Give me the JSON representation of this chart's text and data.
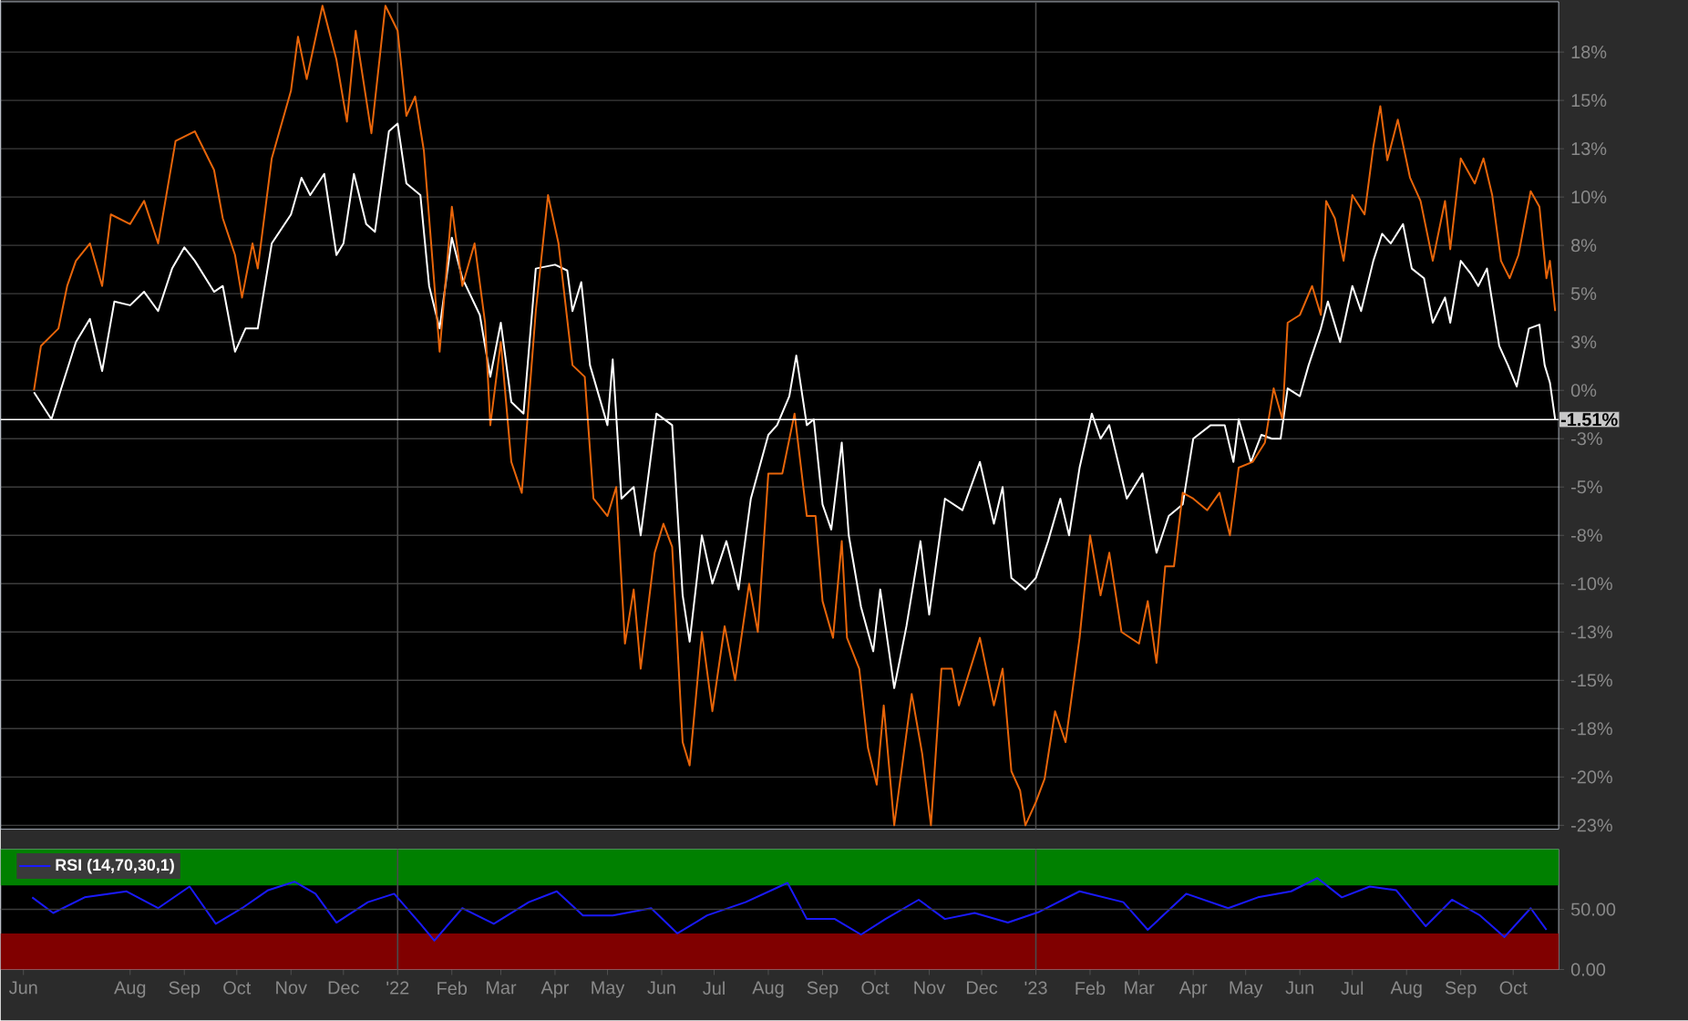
{
  "chart_data": [
    {
      "type": "line",
      "xlim": [
        "2021-05-19",
        "2023-10-27"
      ],
      "ylim": [
        -22.7,
        20.1
      ],
      "tick_labels": "y",
      "grid": "y",
      "yticks": [
        {
          "value": 17.5,
          "label": "18%"
        },
        {
          "value": 15,
          "label": "15%"
        },
        {
          "value": 12.5,
          "label": "13%"
        },
        {
          "value": 10,
          "label": "10%"
        },
        {
          "value": 7.5,
          "label": "8%"
        },
        {
          "value": 5,
          "label": "5%"
        },
        {
          "value": 2.5,
          "label": "3%"
        },
        {
          "value": 0,
          "label": "0%"
        },
        {
          "value": -2.5,
          "label": "-3%"
        },
        {
          "value": -5,
          "label": "-5%"
        },
        {
          "value": -7.5,
          "label": "-8%"
        },
        {
          "value": -10,
          "label": "-10%"
        },
        {
          "value": -12.5,
          "label": "-13%"
        },
        {
          "value": -15,
          "label": "-15%"
        },
        {
          "value": -17.5,
          "label": "-18%"
        },
        {
          "value": -20,
          "label": "-20%"
        },
        {
          "value": -22.5,
          "label": "-23%"
        }
      ],
      "series": [
        {
          "color": "#ffffff",
          "x": [
            "2021-06-07",
            "2021-06-17",
            "2021-07-01",
            "2021-07-09",
            "2021-07-16",
            "2021-07-23",
            "2021-08-01",
            "2021-08-09",
            "2021-08-17",
            "2021-08-25",
            "2021-09-01",
            "2021-09-07",
            "2021-09-18",
            "2021-09-23",
            "2021-09-30",
            "2021-10-06",
            "2021-10-13",
            "2021-10-21",
            "2021-11-01",
            "2021-11-07",
            "2021-11-12",
            "2021-11-20",
            "2021-11-27",
            "2021-12-01",
            "2021-12-07",
            "2021-12-14",
            "2021-12-19",
            "2021-12-27",
            "2022-01-01",
            "2022-01-06",
            "2022-01-14",
            "2022-01-19",
            "2022-01-25",
            "2022-02-01",
            "2022-02-07",
            "2022-02-17",
            "2022-02-23",
            "2022-03-01",
            "2022-03-07",
            "2022-03-14",
            "2022-03-21",
            "2022-04-01",
            "2022-04-08",
            "2022-04-11",
            "2022-04-16",
            "2022-04-21",
            "2022-05-01",
            "2022-05-04",
            "2022-05-09",
            "2022-05-16",
            "2022-05-20",
            "2022-05-29",
            "2022-06-07",
            "2022-06-13",
            "2022-06-17",
            "2022-06-24",
            "2022-06-30",
            "2022-07-08",
            "2022-07-15",
            "2022-07-22",
            "2022-08-01",
            "2022-08-06",
            "2022-08-13",
            "2022-08-17",
            "2022-08-23",
            "2022-08-27",
            "2022-09-01",
            "2022-09-06",
            "2022-09-12",
            "2022-09-16",
            "2022-09-23",
            "2022-09-30",
            "2022-10-04",
            "2022-10-12",
            "2022-10-19",
            "2022-10-27",
            "2022-11-01",
            "2022-11-10",
            "2022-11-20",
            "2022-11-30",
            "2022-12-08",
            "2022-12-13",
            "2022-12-18",
            "2022-12-26",
            "2023-01-01",
            "2023-01-08",
            "2023-01-15",
            "2023-01-20",
            "2023-01-26",
            "2023-02-02",
            "2023-02-07",
            "2023-02-12",
            "2023-02-17",
            "2023-02-22",
            "2023-03-03",
            "2023-03-11",
            "2023-03-18",
            "2023-03-26",
            "2023-04-01",
            "2023-04-11",
            "2023-04-19",
            "2023-04-24",
            "2023-04-27",
            "2023-05-04",
            "2023-05-10",
            "2023-05-16",
            "2023-05-21",
            "2023-05-25",
            "2023-06-01",
            "2023-06-06",
            "2023-06-13",
            "2023-06-17",
            "2023-06-24",
            "2023-07-01",
            "2023-07-06",
            "2023-07-13",
            "2023-07-18",
            "2023-07-23",
            "2023-07-30",
            "2023-08-04",
            "2023-08-11",
            "2023-08-16",
            "2023-08-23",
            "2023-08-26",
            "2023-09-01",
            "2023-09-07",
            "2023-09-11",
            "2023-09-16",
            "2023-09-23",
            "2023-09-28",
            "2023-10-03",
            "2023-10-10",
            "2023-10-16",
            "2023-10-19",
            "2023-10-22",
            "2023-10-25"
          ],
          "values": [
            -0.1,
            -1.5,
            2.5,
            3.7,
            1.0,
            4.6,
            4.4,
            5.1,
            4.1,
            6.3,
            7.4,
            6.7,
            5.1,
            5.4,
            2.0,
            3.2,
            3.2,
            7.6,
            9.1,
            11.0,
            10.1,
            11.2,
            7.0,
            7.6,
            11.2,
            8.6,
            8.2,
            13.4,
            13.8,
            10.7,
            10.1,
            5.4,
            3.2,
            7.9,
            5.8,
            3.9,
            0.7,
            3.5,
            -0.6,
            -1.2,
            6.3,
            6.5,
            6.2,
            4.1,
            5.6,
            1.3,
            -1.8,
            1.6,
            -5.6,
            -5.0,
            -7.5,
            -1.2,
            -1.8,
            -10.6,
            -13.0,
            -7.5,
            -10.0,
            -7.8,
            -10.3,
            -5.6,
            -2.3,
            -1.8,
            -0.3,
            1.8,
            -1.8,
            -1.5,
            -5.9,
            -7.2,
            -2.7,
            -7.5,
            -11.2,
            -13.5,
            -10.3,
            -15.4,
            -12.2,
            -7.8,
            -11.6,
            -5.6,
            -6.2,
            -3.7,
            -6.9,
            -5.0,
            -9.7,
            -10.3,
            -9.7,
            -7.8,
            -5.6,
            -7.5,
            -4.0,
            -1.2,
            -2.5,
            -1.8,
            -3.7,
            -5.6,
            -4.3,
            -8.4,
            -6.5,
            -5.9,
            -2.5,
            -1.8,
            -1.8,
            -3.7,
            -1.5,
            -3.7,
            -2.3,
            -2.5,
            -2.5,
            0.1,
            -0.3,
            1.3,
            3.2,
            4.6,
            2.5,
            5.4,
            4.1,
            6.7,
            8.1,
            7.6,
            8.6,
            6.3,
            5.8,
            3.5,
            4.8,
            3.5,
            6.7,
            6.0,
            5.4,
            6.3,
            2.3,
            1.3,
            0.2,
            3.2,
            3.4,
            1.3,
            0.4,
            -1.51
          ]
        },
        {
          "color": "#e8650a",
          "x": [
            "2021-06-07",
            "2021-06-11",
            "2021-06-21",
            "2021-06-26",
            "2021-07-01",
            "2021-07-09",
            "2021-07-16",
            "2021-07-21",
            "2021-08-01",
            "2021-08-09",
            "2021-08-17",
            "2021-08-27",
            "2021-09-07",
            "2021-09-18",
            "2021-09-23",
            "2021-09-30",
            "2021-10-04",
            "2021-10-10",
            "2021-10-13",
            "2021-10-21",
            "2021-11-01",
            "2021-11-05",
            "2021-11-10",
            "2021-11-19",
            "2021-11-27",
            "2021-12-03",
            "2021-12-08",
            "2021-12-17",
            "2021-12-25",
            "2022-01-01",
            "2022-01-06",
            "2022-01-11",
            "2022-01-16",
            "2022-01-25",
            "2022-02-01",
            "2022-02-07",
            "2022-02-14",
            "2022-02-20",
            "2022-02-23",
            "2022-03-01",
            "2022-03-07",
            "2022-03-13",
            "2022-03-21",
            "2022-03-28",
            "2022-04-03",
            "2022-04-11",
            "2022-04-18",
            "2022-04-23",
            "2022-05-01",
            "2022-05-06",
            "2022-05-11",
            "2022-05-16",
            "2022-05-20",
            "2022-05-28",
            "2022-06-02",
            "2022-06-07",
            "2022-06-13",
            "2022-06-17",
            "2022-06-24",
            "2022-06-30",
            "2022-07-07",
            "2022-07-13",
            "2022-07-21",
            "2022-07-26",
            "2022-08-01",
            "2022-08-09",
            "2022-08-16",
            "2022-08-23",
            "2022-08-28",
            "2022-09-01",
            "2022-09-07",
            "2022-09-12",
            "2022-09-15",
            "2022-09-22",
            "2022-09-27",
            "2022-10-02",
            "2022-10-06",
            "2022-10-12",
            "2022-10-22",
            "2022-10-28",
            "2022-11-02",
            "2022-11-08",
            "2022-11-14",
            "2022-11-18",
            "2022-11-30",
            "2022-12-08",
            "2022-12-13",
            "2022-12-18",
            "2022-12-23",
            "2022-12-26",
            "2023-01-01",
            "2023-01-06",
            "2023-01-12",
            "2023-01-18",
            "2023-01-26",
            "2023-02-01",
            "2023-02-07",
            "2023-02-12",
            "2023-02-19",
            "2023-03-01",
            "2023-03-06",
            "2023-03-11",
            "2023-03-16",
            "2023-03-21",
            "2023-03-26",
            "2023-04-01",
            "2023-04-09",
            "2023-04-16",
            "2023-04-22",
            "2023-04-27",
            "2023-05-05",
            "2023-05-12",
            "2023-05-17",
            "2023-05-22",
            "2023-05-25",
            "2023-06-01",
            "2023-06-08",
            "2023-06-13",
            "2023-06-16",
            "2023-06-21",
            "2023-06-26",
            "2023-07-01",
            "2023-07-08",
            "2023-07-13",
            "2023-07-17",
            "2023-07-21",
            "2023-07-27",
            "2023-08-03",
            "2023-08-09",
            "2023-08-16",
            "2023-08-23",
            "2023-08-26",
            "2023-09-01",
            "2023-09-09",
            "2023-09-14",
            "2023-09-19",
            "2023-09-24",
            "2023-09-29",
            "2023-10-04",
            "2023-10-08",
            "2023-10-11",
            "2023-10-16",
            "2023-10-20",
            "2023-10-22",
            "2023-10-25"
          ],
          "values": [
            0.0,
            2.3,
            3.2,
            5.4,
            6.7,
            7.6,
            5.4,
            9.1,
            8.6,
            9.8,
            7.6,
            12.9,
            13.4,
            11.4,
            8.9,
            7.0,
            4.8,
            7.6,
            6.3,
            12.0,
            15.5,
            18.3,
            16.1,
            19.9,
            17.1,
            13.9,
            18.6,
            13.3,
            19.9,
            18.6,
            14.2,
            15.2,
            12.4,
            2.0,
            9.5,
            5.4,
            7.6,
            3.5,
            -1.8,
            2.5,
            -3.7,
            -5.3,
            4.1,
            10.1,
            7.6,
            1.3,
            0.7,
            -5.6,
            -6.5,
            -5.0,
            -13.1,
            -10.3,
            -14.4,
            -8.4,
            -6.9,
            -8.1,
            -18.2,
            -19.4,
            -12.5,
            -16.6,
            -12.2,
            -15.0,
            -10.0,
            -12.5,
            -4.3,
            -4.3,
            -1.2,
            -6.5,
            -6.5,
            -10.9,
            -12.8,
            -7.8,
            -12.8,
            -14.4,
            -18.5,
            -20.4,
            -16.3,
            -22.5,
            -15.7,
            -18.8,
            -22.5,
            -14.4,
            -14.4,
            -16.3,
            -12.8,
            -16.3,
            -14.4,
            -19.7,
            -20.7,
            -22.5,
            -21.3,
            -20.1,
            -16.6,
            -18.2,
            -12.8,
            -7.5,
            -10.6,
            -8.4,
            -12.5,
            -13.1,
            -10.9,
            -14.1,
            -9.1,
            -9.1,
            -5.3,
            -5.6,
            -6.2,
            -5.3,
            -7.5,
            -4.0,
            -3.7,
            -2.7,
            0.1,
            -1.5,
            3.5,
            3.9,
            5.4,
            3.9,
            9.8,
            8.9,
            6.7,
            10.1,
            9.1,
            12.6,
            14.7,
            11.9,
            14.0,
            11.0,
            9.8,
            6.7,
            9.8,
            7.3,
            12.0,
            10.7,
            12.0,
            10.1,
            6.7,
            5.8,
            7.0,
            8.9,
            10.3,
            9.5,
            5.8,
            6.7,
            4.1
          ]
        }
      ],
      "ref_lines": [
        {
          "axis": "x",
          "value": "2022-01-01",
          "color": "#4a4a4a"
        },
        {
          "axis": "x",
          "value": "2023-01-01",
          "color": "#4a4a4a"
        },
        {
          "axis": "y",
          "value": -1.51,
          "label": "-1.51%",
          "color": "#ffffff"
        }
      ]
    },
    {
      "type": "line",
      "xlim": [
        "2021-05-19",
        "2023-10-27"
      ],
      "ylim": [
        0,
        100
      ],
      "legend": "top left",
      "yticks": [
        {
          "value": 50,
          "label": "50.00"
        },
        {
          "value": 0,
          "label": "0.00"
        }
      ],
      "xticks": [
        {
          "value": "2021-06-01",
          "label": "Jun"
        },
        {
          "value": "2021-08-01",
          "label": "Aug"
        },
        {
          "value": "2021-09-01",
          "label": "Sep"
        },
        {
          "value": "2021-10-01",
          "label": "Oct"
        },
        {
          "value": "2021-11-01",
          "label": "Nov"
        },
        {
          "value": "2021-12-01",
          "label": "Dec"
        },
        {
          "value": "2022-01-01",
          "label": "'22"
        },
        {
          "value": "2022-02-01",
          "label": "Feb"
        },
        {
          "value": "2022-03-01",
          "label": "Mar"
        },
        {
          "value": "2022-04-01",
          "label": "Apr"
        },
        {
          "value": "2022-05-01",
          "label": "May"
        },
        {
          "value": "2022-06-01",
          "label": "Jun"
        },
        {
          "value": "2022-07-01",
          "label": "Jul"
        },
        {
          "value": "2022-08-01",
          "label": "Aug"
        },
        {
          "value": "2022-09-01",
          "label": "Sep"
        },
        {
          "value": "2022-10-01",
          "label": "Oct"
        },
        {
          "value": "2022-11-01",
          "label": "Nov"
        },
        {
          "value": "2022-12-01",
          "label": "Dec"
        },
        {
          "value": "2023-01-01",
          "label": "'23"
        },
        {
          "value": "2023-02-01",
          "label": "Feb"
        },
        {
          "value": "2023-03-01",
          "label": "Mar"
        },
        {
          "value": "2023-04-01",
          "label": "Apr"
        },
        {
          "value": "2023-05-01",
          "label": "May"
        },
        {
          "value": "2023-06-01",
          "label": "Jun"
        },
        {
          "value": "2023-07-01",
          "label": "Jul"
        },
        {
          "value": "2023-08-01",
          "label": "Aug"
        },
        {
          "value": "2023-09-01",
          "label": "Sep"
        },
        {
          "value": "2023-10-01",
          "label": "Oct"
        }
      ],
      "bands": [
        {
          "axis": "y",
          "from": 70,
          "to": 100,
          "color": "#008000"
        },
        {
          "axis": "y",
          "from": 0,
          "to": 30,
          "color": "#800000"
        }
      ],
      "ref_lines": [
        {
          "axis": "x",
          "value": "2022-01-01",
          "color": "#4a4a4a"
        },
        {
          "axis": "x",
          "value": "2023-01-01",
          "color": "#4a4a4a"
        },
        {
          "axis": "y",
          "value": 50,
          "color": "#3c3c3c"
        }
      ],
      "series": [
        {
          "name": "RSI (14,70,30,1)",
          "color": "#1a1aff",
          "x": [
            "2021-06-06",
            "2021-06-18",
            "2021-07-06",
            "2021-07-30",
            "2021-08-17",
            "2021-09-04",
            "2021-09-19",
            "2021-10-04",
            "2021-10-19",
            "2021-11-03",
            "2021-11-15",
            "2021-11-27",
            "2021-12-15",
            "2021-12-30",
            "2022-01-14",
            "2022-01-22",
            "2022-02-07",
            "2022-02-25",
            "2022-03-17",
            "2022-04-02",
            "2022-04-17",
            "2022-05-04",
            "2022-05-26",
            "2022-06-10",
            "2022-06-27",
            "2022-07-19",
            "2022-08-12",
            "2022-08-23",
            "2022-09-08",
            "2022-09-23",
            "2022-10-07",
            "2022-10-26",
            "2022-11-10",
            "2022-11-27",
            "2022-12-16",
            "2023-01-03",
            "2023-01-26",
            "2023-02-20",
            "2023-03-06",
            "2023-03-28",
            "2023-04-21",
            "2023-05-08",
            "2023-05-27",
            "2023-06-11",
            "2023-06-25",
            "2023-07-11",
            "2023-07-26",
            "2023-08-12",
            "2023-08-27",
            "2023-09-12",
            "2023-09-26",
            "2023-10-11",
            "2023-10-20"
          ],
          "values": [
            60,
            47,
            60,
            65,
            51,
            69,
            38,
            51,
            66,
            73,
            63,
            39,
            56,
            63,
            38,
            24,
            51,
            38,
            56,
            65,
            45,
            45,
            51,
            30,
            45,
            56,
            72,
            42,
            42,
            29,
            42,
            58,
            42,
            47,
            39,
            48,
            65,
            56,
            33,
            63,
            51,
            60,
            65,
            76,
            60,
            69,
            66,
            36,
            58,
            45,
            27,
            51,
            33
          ]
        }
      ]
    }
  ]
}
